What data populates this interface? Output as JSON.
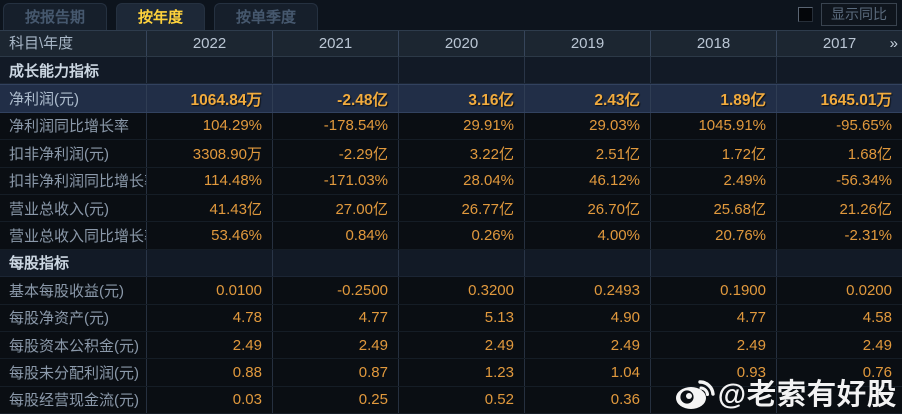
{
  "tabs": [
    {
      "label": "按报告期",
      "active": false
    },
    {
      "label": "按年度",
      "active": true
    },
    {
      "label": "按单季度",
      "active": false
    }
  ],
  "controls": {
    "show_yoy_label": "显示同比",
    "show_yoy_checked": false
  },
  "table": {
    "corner_header": "科目\\年度",
    "year_columns": [
      "2022",
      "2021",
      "2020",
      "2019",
      "2018",
      "2017"
    ],
    "more_years_icon": "»",
    "rows": [
      {
        "type": "section",
        "label": "成长能力指标"
      },
      {
        "type": "data",
        "label": "净利润(元)",
        "highlight": true,
        "values": [
          "1064.84万",
          "-2.48亿",
          "3.16亿",
          "2.43亿",
          "1.89亿",
          "1645.01万"
        ]
      },
      {
        "type": "data",
        "label": "净利润同比增长率",
        "values": [
          "104.29%",
          "-178.54%",
          "29.91%",
          "29.03%",
          "1045.91%",
          "-95.65%"
        ]
      },
      {
        "type": "data",
        "label": "扣非净利润(元)",
        "values": [
          "3308.90万",
          "-2.29亿",
          "3.22亿",
          "2.51亿",
          "1.72亿",
          "1.68亿"
        ]
      },
      {
        "type": "data",
        "label": "扣非净利润同比增长率",
        "values": [
          "114.48%",
          "-171.03%",
          "28.04%",
          "46.12%",
          "2.49%",
          "-56.34%"
        ]
      },
      {
        "type": "data",
        "label": "营业总收入(元)",
        "values": [
          "41.43亿",
          "27.00亿",
          "26.77亿",
          "26.70亿",
          "25.68亿",
          "21.26亿"
        ]
      },
      {
        "type": "data",
        "label": "营业总收入同比增长率",
        "values": [
          "53.46%",
          "0.84%",
          "0.26%",
          "4.00%",
          "20.76%",
          "-2.31%"
        ]
      },
      {
        "type": "section",
        "label": "每股指标"
      },
      {
        "type": "data",
        "label": "基本每股收益(元)",
        "values": [
          "0.0100",
          "-0.2500",
          "0.3200",
          "0.2493",
          "0.1900",
          "0.0200"
        ]
      },
      {
        "type": "data",
        "label": "每股净资产(元)",
        "values": [
          "4.78",
          "4.77",
          "5.13",
          "4.90",
          "4.77",
          "4.58"
        ]
      },
      {
        "type": "data",
        "label": "每股资本公积金(元)",
        "values": [
          "2.49",
          "2.49",
          "2.49",
          "2.49",
          "2.49",
          "2.49"
        ]
      },
      {
        "type": "data",
        "label": "每股未分配利润(元)",
        "values": [
          "0.88",
          "0.87",
          "1.23",
          "1.04",
          "0.93",
          "0.76"
        ]
      },
      {
        "type": "data",
        "label": "每股经营现金流(元)",
        "values": [
          "0.03",
          "0.25",
          "0.52",
          "0.36",
          "",
          ""
        ]
      }
    ]
  },
  "watermark": {
    "icon": "weibo-logo",
    "text": "@老索有好股"
  },
  "colors": {
    "accent_yellow": "#fed23c",
    "value_gold": "#e1993d",
    "highlight_value_gold": "#f1ab3e",
    "highlight_row_bg": "#212e47",
    "header_row_bg": "#1c2631",
    "section_row_bg": "#121a26",
    "body_bg": "#0a0e13",
    "watermark_color": "#ffffff"
  }
}
